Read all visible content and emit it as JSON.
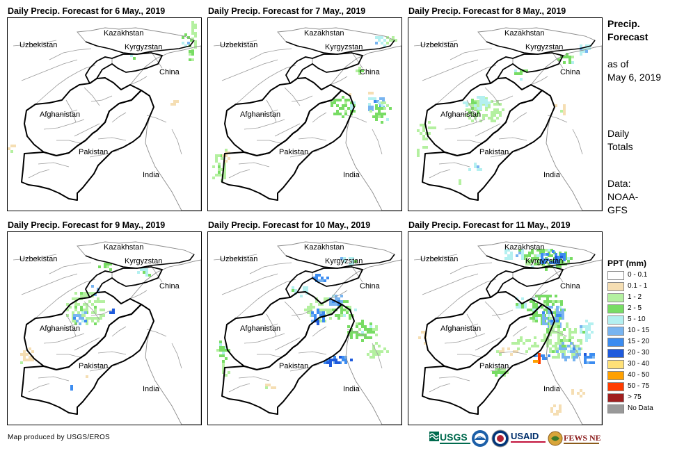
{
  "panels": [
    {
      "title": "Daily Precip. Forecast for 6 May., 2019"
    },
    {
      "title": "Daily Precip. Forecast for 7 May., 2019"
    },
    {
      "title": "Daily Precip. Forecast for 8 May., 2019"
    },
    {
      "title": "Daily Precip. Forecast for 9 May., 2019"
    },
    {
      "title": "Daily Precip. Forecast for 10 May., 2019"
    },
    {
      "title": "Daily Precip. Forecast for 11 May., 2019"
    }
  ],
  "map_labels": {
    "kazakhstan": "Kazakhstan",
    "uzbekistan": "Uzbekistan",
    "kyrgyzstan": "Kyrgyzstan",
    "china": "China",
    "afghanistan": "Afghanistan",
    "pakistan": "Pakistan",
    "india": "India"
  },
  "side_panel": {
    "heading_line1": "Precip.",
    "heading_line2": "Forecast",
    "asof_line1": "as of",
    "asof_line2": "May 6, 2019",
    "daily_line1": "Daily",
    "daily_line2": "Totals",
    "data_line1": "Data:",
    "data_line2": "NOAA-",
    "data_line3": "GFS"
  },
  "legend": {
    "title": "PPT (mm)",
    "items": [
      {
        "label": "0 - 0.1",
        "color": "#ffffff"
      },
      {
        "label": "0.1 - 1",
        "color": "#f5deb3"
      },
      {
        "label": "1 - 2",
        "color": "#b4f0a0"
      },
      {
        "label": "2 - 5",
        "color": "#78dc64"
      },
      {
        "label": "5 - 10",
        "color": "#b4f0f0"
      },
      {
        "label": "10 - 15",
        "color": "#78b4f0"
      },
      {
        "label": "15 - 20",
        "color": "#3c8cf0"
      },
      {
        "label": "20 - 30",
        "color": "#1e5adc"
      },
      {
        "label": "30 - 40",
        "color": "#ffe178"
      },
      {
        "label": "40 - 50",
        "color": "#ffa000"
      },
      {
        "label": "50 - 75",
        "color": "#ff3c00"
      },
      {
        "label": "> 75",
        "color": "#a01e1e"
      },
      {
        "label": "No Data",
        "color": "#999999"
      }
    ]
  },
  "footer": {
    "credit": "Map produced by USGS/EROS",
    "logos": [
      "USGS",
      "NOAA",
      "USAID",
      "FEWS NET"
    ]
  }
}
